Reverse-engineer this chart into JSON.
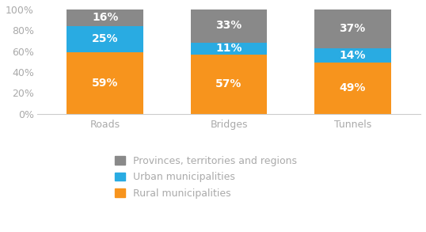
{
  "categories": [
    "Roads",
    "Bridges",
    "Tunnels"
  ],
  "rural": [
    59,
    57,
    49
  ],
  "urban": [
    25,
    11,
    14
  ],
  "provinces": [
    16,
    33,
    37
  ],
  "rural_color": "#F7941D",
  "urban_color": "#29ABE2",
  "provinces_color": "#898989",
  "rural_label": "Rural municipalities",
  "urban_label": "Urban municipalities",
  "provinces_label": "Provinces, territories and regions",
  "text_color": "#FFFFFF",
  "bar_width": 0.62,
  "ylim": [
    0,
    100
  ],
  "yticks": [
    0,
    20,
    40,
    60,
    80,
    100
  ],
  "ytick_labels": [
    "0%",
    "20%",
    "40%",
    "60%",
    "80%",
    "100%"
  ],
  "background_color": "#FFFFFF",
  "tick_color": "#AAAAAA",
  "font_size_labels": 10,
  "font_size_ticks": 9,
  "font_size_legend": 9,
  "spine_color": "#CCCCCC"
}
